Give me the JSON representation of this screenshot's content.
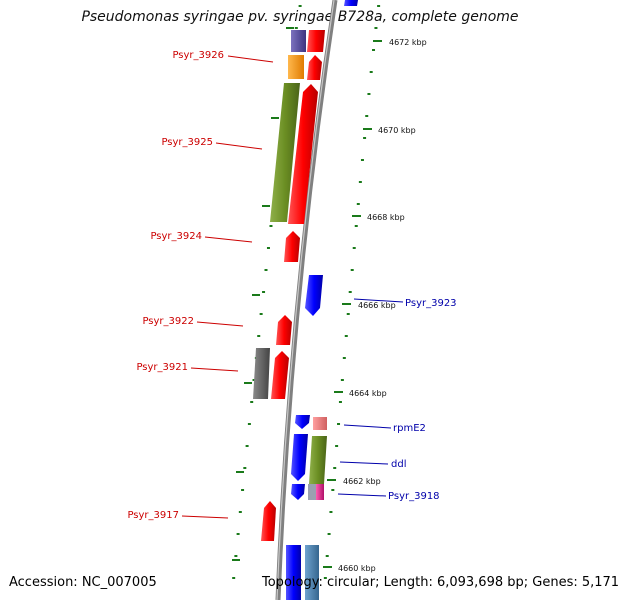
{
  "title": "Pseudomonas syringae pv. syringae B728a, complete genome",
  "footer": {
    "accession": "Accession: NC_007005",
    "topology": "Topology: circular; Length: 6,093,698 bp; Genes: 5,171"
  },
  "colors": {
    "backbone": "#808080",
    "tick_green": "#1a7a1a",
    "label_red": "#cc0000",
    "label_blue": "#0000aa",
    "gene_red": "#ff0000",
    "gene_blue": "#0000ff",
    "gene_olive": "#6b8e23",
    "gene_purple": "#5b4fa0",
    "gene_orange": "#ff9900",
    "gene_gray": "#666666",
    "gene_pink": "#ef7d7d",
    "gene_steelblue": "#4682b4",
    "gene_magenta": "#e0218a"
  },
  "scale_labels": [
    "4672 kbp",
    "4670 kbp",
    "4668 kbp",
    "4666 kbp",
    "4664 kbp",
    "4662 kbp",
    "4660 kbp"
  ],
  "gene_labels": {
    "left": [
      "Psyr_3926",
      "Psyr_3925",
      "Psyr_3924",
      "Psyr_3922",
      "Psyr_3921",
      "Psyr_3917"
    ],
    "right": [
      "Psyr_3923",
      "rpmE2",
      "ddl",
      "Psyr_3918"
    ]
  }
}
